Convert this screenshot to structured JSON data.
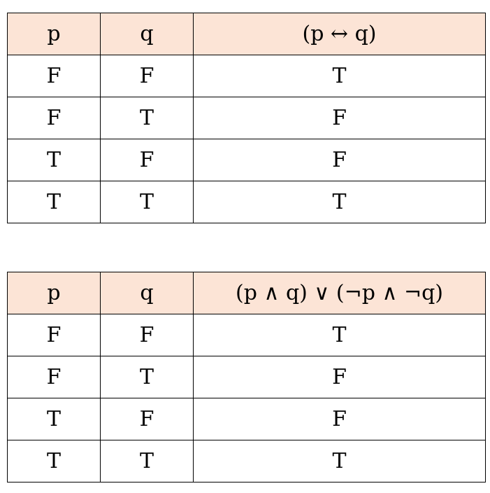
{
  "tables": [
    {
      "header_color": "#fce4d6",
      "headers": [
        "p",
        "q",
        "(p ↔ q)"
      ],
      "rows": [
        [
          "F",
          "F",
          "T"
        ],
        [
          "F",
          "T",
          "F"
        ],
        [
          "T",
          "F",
          "F"
        ],
        [
          "T",
          "T",
          "T"
        ]
      ]
    },
    {
      "header_color": "#fce4d6",
      "headers": [
        "p",
        "q",
        "(p ∧ q) ∨ (¬p ∧ ¬q)"
      ],
      "rows": [
        [
          "F",
          "F",
          "T"
        ],
        [
          "F",
          "T",
          "F"
        ],
        [
          "T",
          "F",
          "F"
        ],
        [
          "T",
          "T",
          "T"
        ]
      ]
    }
  ]
}
